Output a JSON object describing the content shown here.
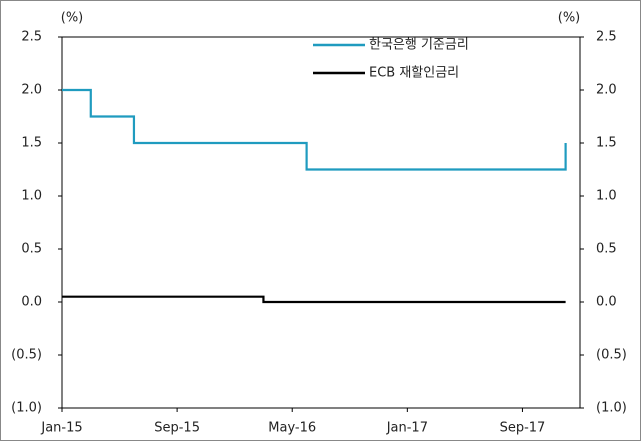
{
  "chart_data": {
    "type": "line",
    "step": true,
    "ylabel": "(%)",
    "y2label": "(%)",
    "xlim": [
      "2015-01",
      "2018-01"
    ],
    "xticks": [
      {
        "value": "2015-01",
        "label": "Jan-15"
      },
      {
        "value": "2015-09",
        "label": "Sep-15"
      },
      {
        "value": "2016-05",
        "label": "May-16"
      },
      {
        "value": "2017-01",
        "label": "Jan-17"
      },
      {
        "value": "2017-09",
        "label": "Sep-17"
      }
    ],
    "ylim": [
      -1,
      2.5
    ],
    "yticks": [
      {
        "value": -1,
        "label": "(1.0)"
      },
      {
        "value": -0.5,
        "label": "(0.5)"
      },
      {
        "value": 0,
        "label": "0.0"
      },
      0.5,
      {
        "value": 1,
        "label": "1.0"
      },
      1.5,
      {
        "value": 2,
        "label": "2.0"
      },
      2.5
    ],
    "y2lim": [
      -1,
      2.5
    ],
    "y2ticks": [
      {
        "value": -1,
        "label": "(1.0)"
      },
      {
        "value": -0.5,
        "label": "(0.5)"
      },
      {
        "value": 0,
        "label": "0.0"
      },
      0.5,
      {
        "value": 1,
        "label": "1.0"
      },
      1.5,
      {
        "value": 2,
        "label": "2.0"
      },
      2.5
    ],
    "legend": "top",
    "series": [
      {
        "name": "한국은행 기준금리",
        "color": "#1f9bbf",
        "x": [
          "2015-01",
          "2015-03",
          "2015-06",
          "2016-06",
          "2017-12"
        ],
        "values": [
          2.0,
          1.75,
          1.5,
          1.25,
          1.5
        ]
      },
      {
        "name": "ECB 재할인금리",
        "color": "#000000",
        "x": [
          "2015-01",
          "2016-03",
          "2017-12"
        ],
        "values": [
          0.05,
          0.0,
          0.0
        ]
      }
    ]
  }
}
